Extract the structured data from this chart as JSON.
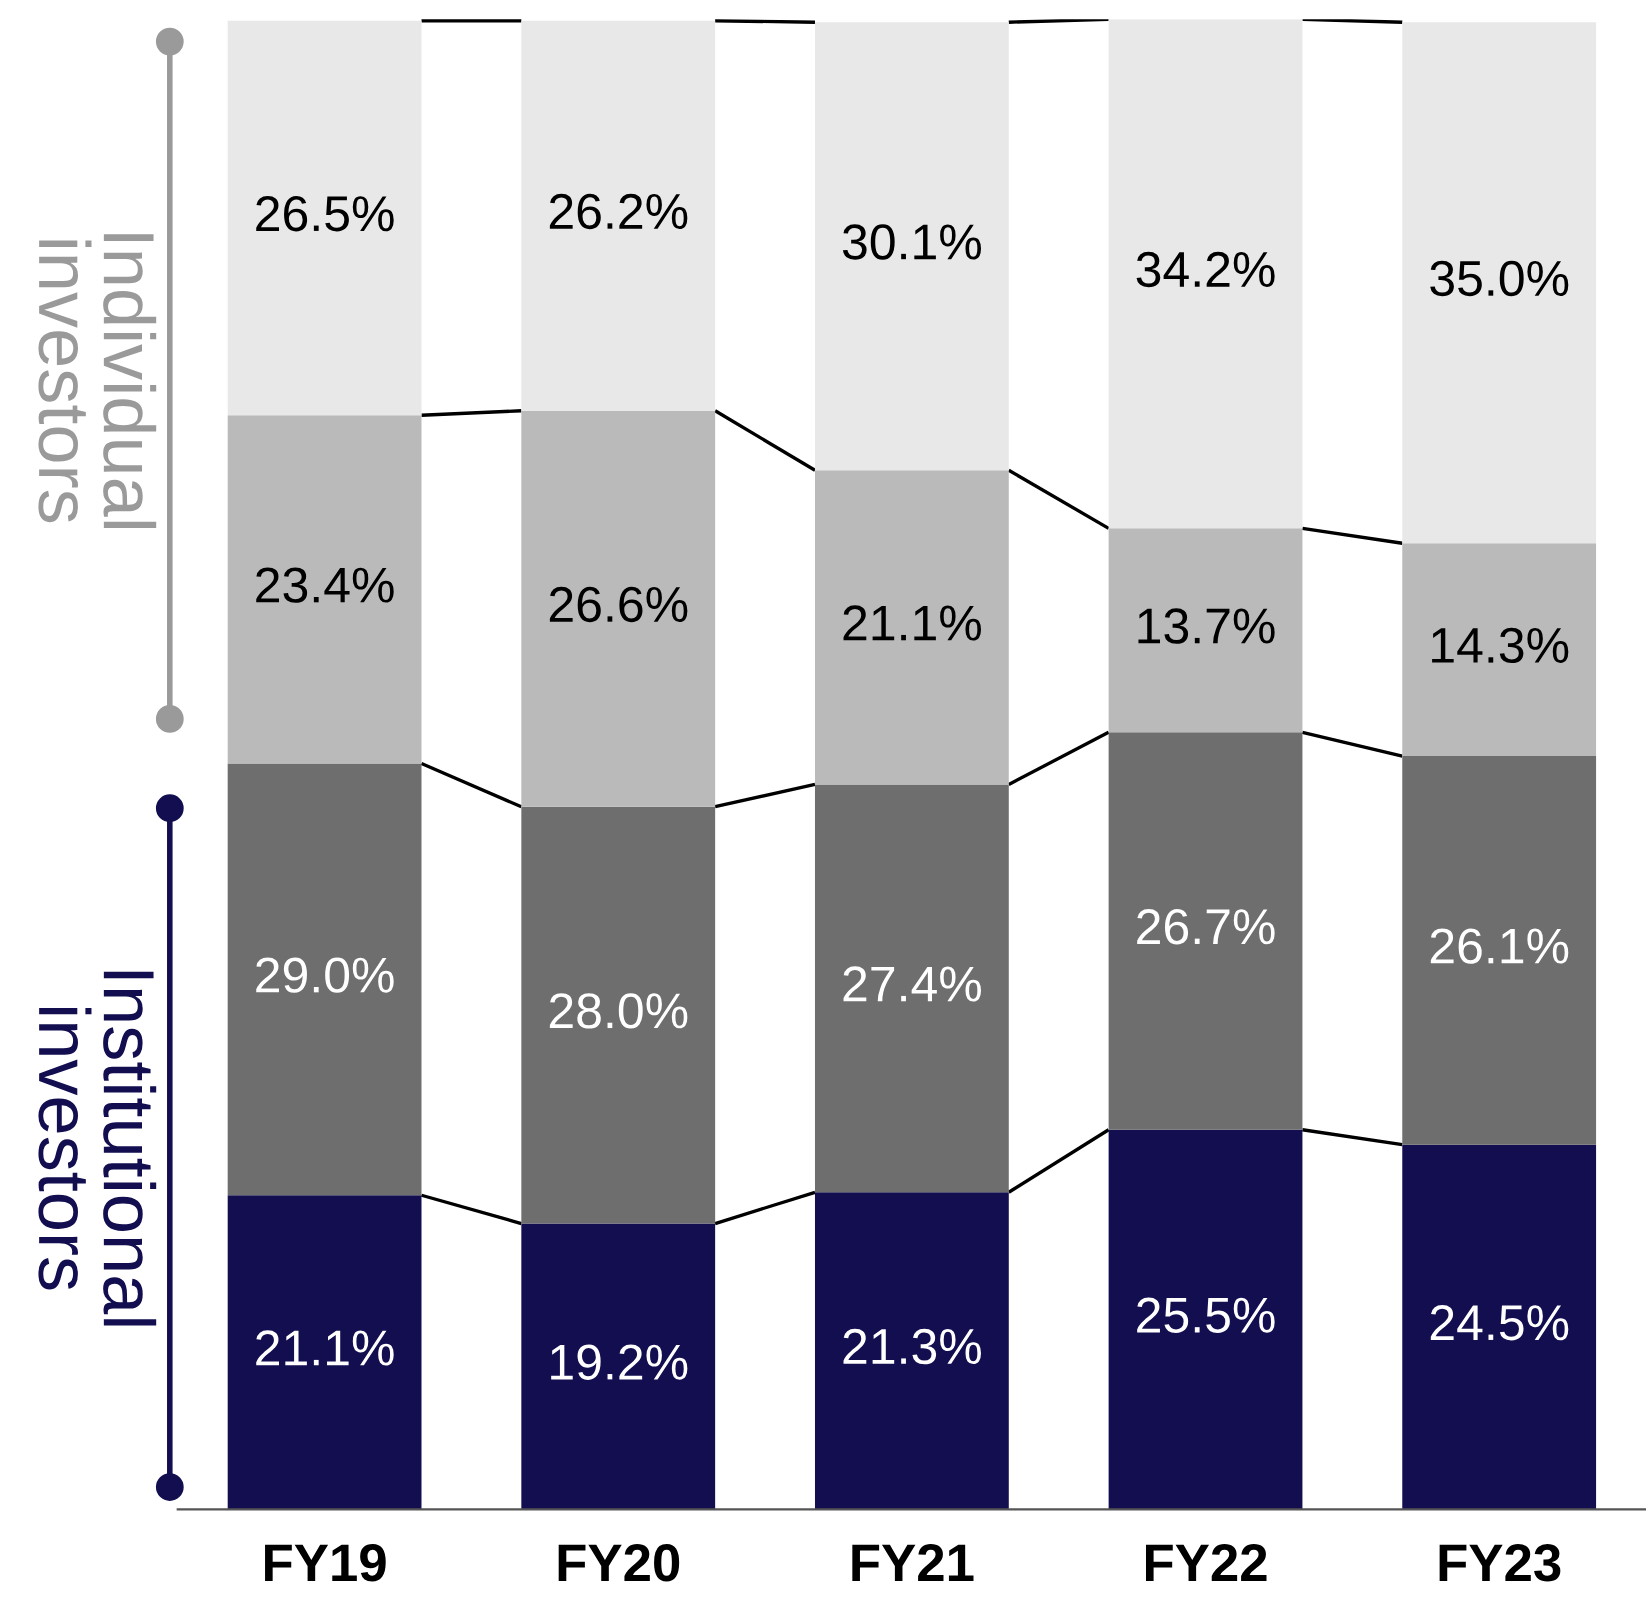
{
  "chart_data": {
    "type": "bar",
    "stacked": true,
    "categories": [
      "FY19",
      "FY20",
      "FY21",
      "FY22",
      "FY23"
    ],
    "series": [
      {
        "color": "#120e50",
        "values": [
          21.1,
          19.2,
          21.3,
          25.5,
          24.5
        ],
        "value_labels": [
          "21.1%",
          "19.2%",
          "21.3%",
          "25.5%",
          "24.5%"
        ]
      },
      {
        "color": "#6e6e6e",
        "values": [
          29.0,
          28.0,
          27.4,
          26.7,
          26.1
        ],
        "value_labels": [
          "29.0%",
          "28.0%",
          "27.4%",
          "26.7%",
          "26.1%"
        ]
      },
      {
        "color": "#bababa",
        "values": [
          23.4,
          26.6,
          21.1,
          13.7,
          14.3
        ],
        "value_labels": [
          "23.4%",
          "26.6%",
          "21.1%",
          "13.7%",
          "14.3%"
        ]
      },
      {
        "color": "#e8e8e8",
        "values": [
          26.5,
          26.2,
          30.1,
          34.2,
          35.0
        ],
        "value_labels": [
          "26.5%",
          "26.2%",
          "30.1%",
          "34.2%",
          "35.0%"
        ]
      }
    ],
    "annotations": [
      "Individual investors",
      "Institutional investors"
    ]
  }
}
